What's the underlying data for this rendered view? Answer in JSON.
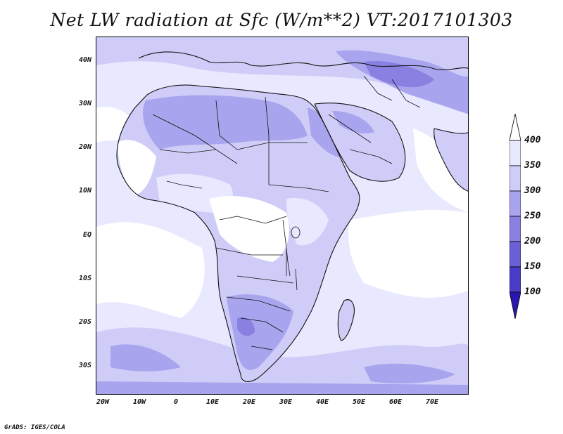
{
  "title": "Net LW radiation at Sfc (W/m**2) VT:2017101303",
  "credit": "GrADS: IGES/COLA",
  "map": {
    "lat_ticks": [
      "40N",
      "30N",
      "20N",
      "10N",
      "EQ",
      "10S",
      "20S",
      "30S"
    ],
    "lon_ticks": [
      "20W",
      "10W",
      "0",
      "10E",
      "20E",
      "30E",
      "40E",
      "50E",
      "60E",
      "70E"
    ]
  },
  "colorbar": {
    "labels": [
      "400",
      "350",
      "300",
      "250",
      "200",
      "150",
      "100"
    ],
    "colors": {
      "above_400": "#ffffff",
      "350_400": "#e8e8ff",
      "300_350": "#cfcdf7",
      "250_300": "#a9a4ee",
      "200_250": "#8a80e2",
      "150_200": "#6a5fd6",
      "100_150": "#4a3cc8",
      "below_100": "#2a17b0"
    }
  }
}
